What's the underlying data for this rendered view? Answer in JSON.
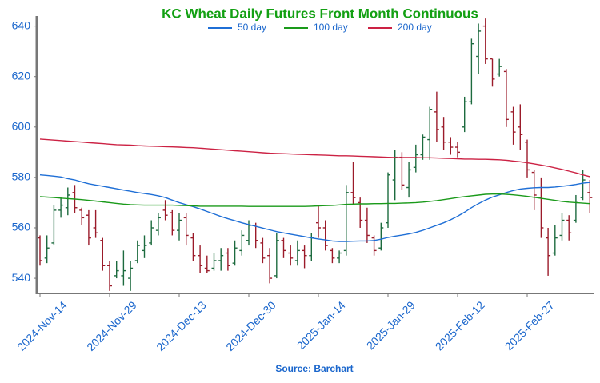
{
  "chart_data": {
    "type": "ohlc",
    "title": "KC Wheat Daily Futures Front Month Continuous",
    "source": "Source: Barchart",
    "categories": [
      "2024-Nov-14",
      null,
      null,
      null,
      null,
      null,
      null,
      null,
      null,
      null,
      "2024-Nov-29",
      null,
      null,
      null,
      null,
      null,
      null,
      null,
      null,
      null,
      "2024-Dec-13",
      null,
      null,
      null,
      null,
      null,
      null,
      null,
      null,
      null,
      "2024-Dec-30",
      null,
      null,
      null,
      null,
      null,
      null,
      null,
      null,
      null,
      "2025-Jan-14",
      null,
      null,
      null,
      null,
      null,
      null,
      null,
      null,
      null,
      "2025-Jan-29",
      null,
      null,
      null,
      null,
      null,
      null,
      null,
      null,
      null,
      "2025-Feb-12",
      null,
      null,
      null,
      null,
      null,
      null,
      null,
      null,
      null,
      "2025-Feb-27",
      null,
      null,
      null,
      null,
      null,
      null,
      null,
      null,
      null
    ],
    "ylim": [
      534,
      644
    ],
    "yticks": [
      540,
      560,
      580,
      600,
      620,
      640
    ],
    "up_color": "#1d6b3f",
    "down_color": "#9b1b2a",
    "open": [
      556,
      548,
      554,
      567,
      568,
      574,
      567,
      565,
      560,
      555,
      545,
      541,
      541,
      540,
      547,
      551,
      554,
      559,
      567,
      566,
      559,
      564,
      556,
      549,
      544,
      544,
      547,
      550,
      546,
      551,
      555,
      561,
      554,
      549,
      541,
      555,
      550,
      547,
      551,
      549,
      562,
      560,
      551,
      548,
      551,
      574,
      570,
      563,
      556,
      552,
      562,
      579,
      588,
      576,
      584,
      589,
      595,
      606,
      600,
      594,
      592,
      600,
      610,
      628,
      640,
      627,
      621,
      622,
      606,
      600,
      594,
      582,
      572,
      556,
      550,
      557,
      563,
      563,
      572,
      574
    ],
    "high": [
      557,
      557,
      569,
      572,
      576,
      577,
      568,
      567,
      567,
      556,
      547,
      547,
      551,
      547,
      555,
      557,
      563,
      566,
      571,
      567,
      566,
      566,
      558,
      553,
      549,
      550,
      552,
      552,
      555,
      559,
      563,
      562,
      556,
      552,
      558,
      556,
      553,
      555,
      553,
      558,
      569,
      563,
      552,
      551,
      577,
      586,
      572,
      568,
      557,
      562,
      582,
      591,
      590,
      586,
      593,
      597,
      608,
      614,
      604,
      596,
      594,
      612,
      635,
      641,
      643,
      627,
      627,
      623,
      608,
      609,
      595,
      583,
      580,
      560,
      561,
      566,
      565,
      573,
      583,
      579
    ],
    "low": [
      545,
      546,
      553,
      564,
      565,
      566,
      561,
      553,
      556,
      543,
      535,
      540,
      537,
      535,
      546,
      548,
      553,
      557,
      563,
      557,
      555,
      553,
      547,
      542,
      542,
      543,
      543,
      543,
      545,
      549,
      553,
      552,
      546,
      538,
      540,
      548,
      545,
      545,
      544,
      547,
      556,
      551,
      546,
      546,
      549,
      569,
      560,
      554,
      549,
      551,
      560,
      571,
      575,
      572,
      582,
      587,
      587,
      594,
      591,
      589,
      588,
      598,
      609,
      621,
      625,
      616,
      620,
      600,
      593,
      591,
      580,
      567,
      556,
      541,
      549,
      555,
      555,
      562,
      571,
      566
    ],
    "close": [
      547,
      552,
      567,
      569,
      573,
      568,
      564,
      556,
      558,
      545,
      537,
      543,
      543,
      544,
      553,
      553,
      560,
      564,
      565,
      559,
      563,
      557,
      549,
      545,
      543,
      547,
      549,
      545,
      552,
      557,
      561,
      555,
      548,
      540,
      555,
      551,
      548,
      551,
      549,
      556,
      560,
      553,
      548,
      550,
      574,
      572,
      563,
      557,
      551,
      560,
      581,
      588,
      577,
      583,
      589,
      596,
      607,
      599,
      594,
      592,
      590,
      610,
      633,
      638,
      627,
      619,
      624,
      603,
      598,
      597,
      583,
      573,
      560,
      549,
      556,
      563,
      558,
      570,
      579,
      572
    ],
    "series": [
      {
        "name": "50 day",
        "color": "#1f6fd6",
        "values": [
          581,
          580.8,
          580.5,
          580.2,
          579.5,
          579,
          578.2,
          577.5,
          577,
          576.5,
          576,
          575.5,
          575,
          574.5,
          574,
          573.6,
          573.2,
          572.7,
          572,
          571,
          570,
          569.2,
          568.4,
          567.5,
          566.5,
          565.5,
          564.5,
          563.6,
          562.8,
          562,
          561.3,
          560.6,
          559.9,
          559.2,
          558.5,
          558,
          557.5,
          557,
          556.5,
          556,
          555.6,
          555.2,
          554.8,
          554.6,
          554.6,
          554.7,
          554.8,
          554.8,
          555,
          555.5,
          556.2,
          556.7,
          557.1,
          557.6,
          558.2,
          559,
          560,
          561,
          562,
          563.2,
          564.6,
          566.2,
          568,
          569.6,
          571,
          572.2,
          573.1,
          574,
          574.8,
          575.4,
          575.7,
          575.9,
          576,
          576,
          576.2,
          576.5,
          576.8,
          577.2,
          577.7,
          578
        ]
      },
      {
        "name": "100 day",
        "color": "#1a9a1a",
        "values": [
          572.4,
          572.2,
          572,
          571.8,
          571.6,
          571.4,
          571.2,
          570.9,
          570.6,
          570.3,
          570,
          569.7,
          569.4,
          569.2,
          569.1,
          569,
          569,
          569,
          569,
          569,
          568.9,
          568.8,
          568.7,
          568.6,
          568.6,
          568.6,
          568.6,
          568.6,
          568.6,
          568.6,
          568.5,
          568.5,
          568.5,
          568.5,
          568.5,
          568.5,
          568.5,
          568.5,
          568.5,
          568.6,
          568.7,
          568.8,
          568.9,
          569.1,
          569.3,
          569.4,
          569.5,
          569.5,
          569.6,
          569.6,
          569.7,
          569.7,
          569.8,
          569.9,
          570,
          570.2,
          570.5,
          570.8,
          571.2,
          571.6,
          572,
          572.4,
          572.7,
          573,
          573.3,
          573.4,
          573.4,
          573.3,
          573.1,
          572.8,
          572.5,
          572.1,
          571.7,
          571.3,
          570.9,
          570.5,
          570.2,
          570,
          569.8,
          569.6
        ]
      },
      {
        "name": "200 day",
        "color": "#cc2244",
        "values": [
          595.2,
          595,
          594.8,
          594.6,
          594.4,
          594.2,
          594,
          593.8,
          593.6,
          593.4,
          593.2,
          593,
          592.9,
          592.8,
          592.6,
          592.5,
          592.4,
          592.3,
          592.2,
          592.1,
          592,
          591.9,
          591.8,
          591.6,
          591.4,
          591.2,
          591,
          590.8,
          590.6,
          590.4,
          590.2,
          590,
          589.8,
          589.6,
          589.5,
          589.4,
          589.3,
          589.2,
          589.1,
          589,
          588.9,
          588.8,
          588.7,
          588.6,
          588.6,
          588.5,
          588.4,
          588.3,
          588.2,
          588.1,
          588,
          587.9,
          587.9,
          587.9,
          587.9,
          587.8,
          587.8,
          587.7,
          587.6,
          587.5,
          587.4,
          587.3,
          587.3,
          587.2,
          587.2,
          587.1,
          587,
          586.8,
          586.5,
          586.2,
          585.8,
          585.4,
          584.9,
          584.4,
          583.8,
          583.2,
          582.5,
          581.8,
          581,
          580.3
        ]
      }
    ]
  }
}
